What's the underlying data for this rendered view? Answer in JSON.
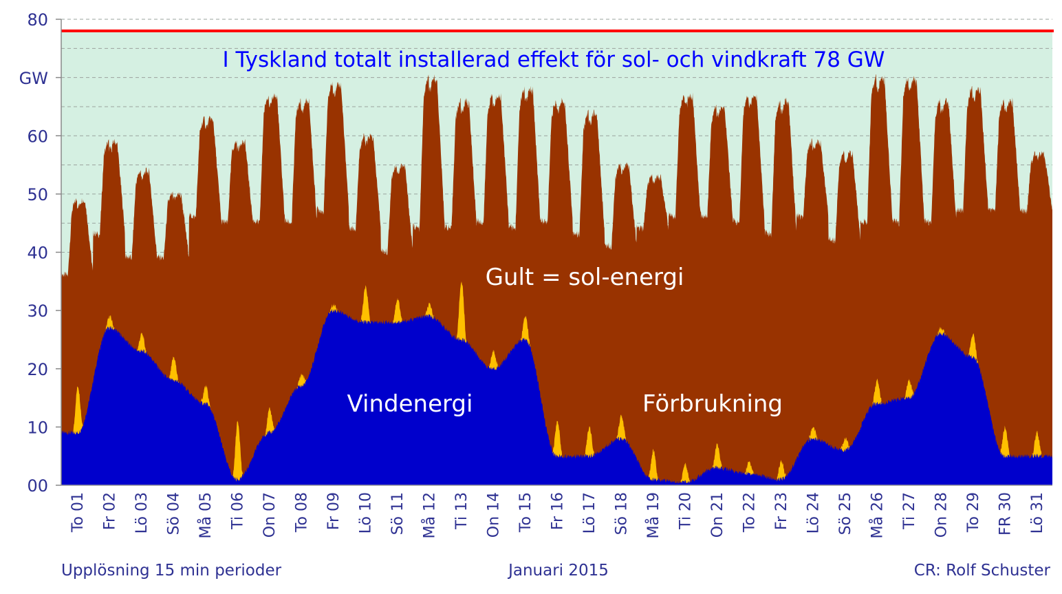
{
  "chart_data": {
    "type": "area",
    "title": "I Tyskland totalt installerad effekt för sol- och vindkraft 78 GW",
    "ylabel": "GW",
    "xlabel": "Januari 2015",
    "ylim": [
      0,
      80
    ],
    "yticks": [
      "00",
      "10",
      "20",
      "30",
      "40",
      "50",
      "60",
      "",
      "80"
    ],
    "grid": true,
    "background_color": "#d5f0e2",
    "installed_capacity": {
      "label": "Installerad effekt",
      "value": 78,
      "color": "#ff0000"
    },
    "categories": [
      "To 01",
      "Fr 02",
      "Lö 03",
      "Sö 04",
      "Må 05",
      "Ti 06",
      "On 07",
      "To 08",
      "Fr 09",
      "Lö 10",
      "Sö 11",
      "Må 12",
      "Ti 13",
      "On 14",
      "To 15",
      "Fr 16",
      "Lö 17",
      "Sö 18",
      "Må 19",
      "Ti 20",
      "On 21",
      "To 22",
      "Fr 23",
      "Lö 24",
      "Sö 25",
      "Må 26",
      "Ti 27",
      "On 28",
      "To 29",
      "FR 30",
      "Lö 31"
    ],
    "series": [
      {
        "name": "Förbrukning",
        "color": "#993300",
        "daily_min": [
          36,
          43,
          39,
          39,
          46,
          45,
          45,
          45,
          47,
          44,
          40,
          44,
          44,
          45,
          44,
          45,
          43,
          41,
          44,
          46,
          46,
          45,
          43,
          46,
          42,
          45,
          45,
          45,
          47,
          47,
          47
        ],
        "daily_max": [
          49,
          59,
          54,
          50,
          63,
          59,
          67,
          66,
          69,
          60,
          55,
          70,
          66,
          67,
          68,
          66,
          64,
          55,
          53,
          67,
          65,
          67,
          66,
          59,
          57,
          70,
          70,
          66,
          68,
          66,
          57
        ]
      },
      {
        "name": "Vindenergi",
        "color": "#0000cc",
        "values": [
          9,
          27,
          23,
          18,
          14,
          1,
          9,
          17,
          30,
          28,
          28,
          29,
          25,
          20,
          25,
          5,
          5,
          8,
          1,
          0.5,
          3,
          2,
          1,
          8,
          6,
          14,
          15,
          26,
          22,
          5,
          5
        ]
      },
      {
        "name": "Sol-energi",
        "color": "#ffc000",
        "note": "Gult = sol-energi",
        "daily_peak": [
          8,
          2,
          3,
          4,
          3,
          10,
          4,
          2,
          1,
          6,
          4,
          2,
          10,
          3,
          4,
          6,
          5,
          4,
          5,
          3,
          4,
          2,
          3,
          2,
          2,
          4,
          3,
          1,
          4,
          5,
          4
        ]
      }
    ],
    "annotations": {
      "solar": "Gult = sol-energi",
      "wind": "Vindenergi",
      "consumption": "Förbrukning"
    },
    "footer": {
      "left": "Upplösning 15 min perioder",
      "center": "Januari 2015",
      "right": "CR: Rolf Schuster"
    }
  }
}
